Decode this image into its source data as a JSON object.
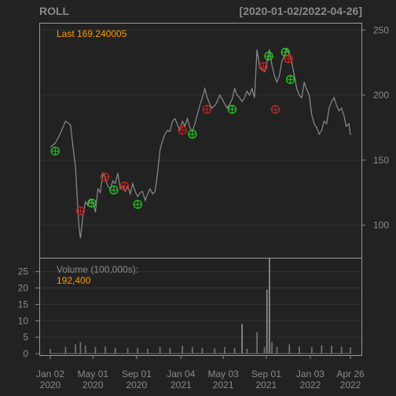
{
  "header": {
    "symbol": "ROLL",
    "range": "[2020-01-02/2022-04-26]"
  },
  "colors": {
    "background": "#222222",
    "panel_border": "#999999",
    "grid": "#333333",
    "axis_text": "#8a8a8a",
    "price_line": "#8c8c8c",
    "volume_bar": "#6f6f6f",
    "volume_bar_up": "#3f7f3f",
    "label_orange": "#ff9900",
    "buy_marker": "#22cc22",
    "sell_marker": "#cc2222"
  },
  "chart_data": [
    {
      "type": "line",
      "panel": "price",
      "legend": {
        "label": "Last",
        "value": "169.240005"
      },
      "ylim": [
        75,
        255
      ],
      "yticks": [
        100,
        150,
        200,
        250
      ],
      "series": [
        {
          "x": [
            "2020-01-02",
            "2020-01-16",
            "2020-01-31",
            "2020-02-14",
            "2020-02-28",
            "2020-03-06",
            "2020-03-13",
            "2020-03-18",
            "2020-03-23",
            "2020-03-27",
            "2020-04-03",
            "2020-04-10",
            "2020-04-17",
            "2020-04-24",
            "2020-05-01",
            "2020-05-08",
            "2020-05-15",
            "2020-05-22",
            "2020-05-29",
            "2020-06-05",
            "2020-06-12",
            "2020-06-19",
            "2020-06-26",
            "2020-07-03",
            "2020-07-10",
            "2020-07-17",
            "2020-07-24",
            "2020-07-31",
            "2020-08-07",
            "2020-08-14",
            "2020-08-21",
            "2020-08-28",
            "2020-09-04",
            "2020-09-11",
            "2020-09-18",
            "2020-09-25",
            "2020-10-02",
            "2020-10-09",
            "2020-10-16",
            "2020-10-23",
            "2020-10-30",
            "2020-11-06",
            "2020-11-13",
            "2020-11-20",
            "2020-11-27",
            "2020-12-04",
            "2020-12-11",
            "2020-12-18",
            "2020-12-24",
            "2020-12-31",
            "2021-01-08",
            "2021-01-15",
            "2021-01-22",
            "2021-01-29",
            "2021-02-05",
            "2021-02-12",
            "2021-02-19",
            "2021-02-26",
            "2021-03-05",
            "2021-03-12",
            "2021-03-19",
            "2021-03-26",
            "2021-04-01",
            "2021-04-09",
            "2021-04-16",
            "2021-04-23",
            "2021-04-30",
            "2021-05-07",
            "2021-05-14",
            "2021-05-21",
            "2021-05-28",
            "2021-06-04",
            "2021-06-11",
            "2021-06-18",
            "2021-06-25",
            "2021-07-02",
            "2021-07-09",
            "2021-07-16",
            "2021-07-23",
            "2021-07-30",
            "2021-08-06",
            "2021-08-13",
            "2021-08-20",
            "2021-08-27",
            "2021-09-03",
            "2021-09-10",
            "2021-09-17",
            "2021-09-24",
            "2021-10-01",
            "2021-10-08",
            "2021-10-15",
            "2021-10-22",
            "2021-10-29",
            "2021-11-05",
            "2021-11-12",
            "2021-11-19",
            "2021-11-26",
            "2021-12-03",
            "2021-12-10",
            "2021-12-17",
            "2021-12-23",
            "2021-12-31",
            "2022-01-07",
            "2022-01-14",
            "2022-01-21",
            "2022-01-28",
            "2022-02-04",
            "2022-02-11",
            "2022-02-18",
            "2022-02-25",
            "2022-03-04",
            "2022-03-11",
            "2022-03-18",
            "2022-03-25",
            "2022-04-01",
            "2022-04-08",
            "2022-04-14",
            "2022-04-22",
            "2022-04-26"
          ],
          "y": [
            160,
            163,
            171,
            180,
            177,
            160,
            145,
            120,
            98,
            90,
            108,
            118,
            115,
            120,
            118,
            110,
            128,
            125,
            140,
            136,
            130,
            128,
            134,
            132,
            140,
            128,
            130,
            126,
            130,
            124,
            132,
            126,
            122,
            125,
            126,
            119,
            124,
            128,
            124,
            126,
            140,
            158,
            165,
            170,
            173,
            172,
            180,
            182,
            178,
            173,
            180,
            176,
            182,
            175,
            172,
            178,
            185,
            192,
            198,
            205,
            198,
            193,
            190,
            192,
            195,
            200,
            197,
            193,
            190,
            193,
            197,
            205,
            200,
            198,
            195,
            198,
            203,
            200,
            205,
            198,
            235,
            222,
            220,
            218,
            225,
            235,
            223,
            215,
            210,
            215,
            226,
            230,
            235,
            232,
            225,
            215,
            205,
            200,
            198,
            210,
            205,
            200,
            185,
            178,
            175,
            170,
            173,
            180,
            178,
            190,
            195,
            198,
            192,
            188,
            190,
            184,
            176,
            178,
            169.24
          ]
        }
      ],
      "markers": {
        "buy": [
          {
            "x": "2020-01-16",
            "y": 157
          },
          {
            "x": "2020-04-28",
            "y": 117
          },
          {
            "x": "2020-06-29",
            "y": 127
          },
          {
            "x": "2020-09-04",
            "y": 116
          },
          {
            "x": "2021-02-05",
            "y": 170
          },
          {
            "x": "2021-05-28",
            "y": 189
          },
          {
            "x": "2021-09-08",
            "y": 230
          },
          {
            "x": "2021-10-25",
            "y": 233
          },
          {
            "x": "2021-11-08",
            "y": 212
          }
        ],
        "sell": [
          {
            "x": "2020-03-27",
            "y": 111
          },
          {
            "x": "2020-06-04",
            "y": 137
          },
          {
            "x": "2020-07-29",
            "y": 130
          },
          {
            "x": "2021-01-08",
            "y": 173
          },
          {
            "x": "2021-03-18",
            "y": 189
          },
          {
            "x": "2021-08-24",
            "y": 222
          },
          {
            "x": "2021-09-27",
            "y": 189
          },
          {
            "x": "2021-11-03",
            "y": 228
          }
        ]
      }
    },
    {
      "type": "bar",
      "panel": "volume",
      "legend": {
        "label": "Volume (100,000s):",
        "value": "192,400"
      },
      "ylim": [
        0,
        29
      ],
      "yticks": [
        0,
        5,
        10,
        15,
        20,
        25
      ],
      "x": [
        "2020-01-02",
        "2020-02-14",
        "2020-03-13",
        "2020-03-27",
        "2020-04-10",
        "2020-05-08",
        "2020-06-05",
        "2020-07-03",
        "2020-08-07",
        "2020-09-04",
        "2020-10-02",
        "2020-11-06",
        "2020-12-04",
        "2021-01-08",
        "2021-02-05",
        "2021-03-05",
        "2021-04-09",
        "2021-05-07",
        "2021-06-04",
        "2021-06-25",
        "2021-07-09",
        "2021-08-06",
        "2021-08-27",
        "2021-09-03",
        "2021-09-10",
        "2021-09-17",
        "2021-10-01",
        "2021-11-05",
        "2021-12-03",
        "2022-01-07",
        "2022-02-04",
        "2022-03-04",
        "2022-04-01",
        "2022-04-26"
      ],
      "values": [
        1.5,
        2.0,
        2.8,
        3.5,
        2.5,
        2.0,
        2.2,
        1.8,
        1.6,
        1.8,
        1.5,
        2.0,
        1.8,
        2.4,
        2.0,
        1.7,
        1.6,
        2.0,
        1.8,
        9.0,
        1.5,
        6.5,
        2.0,
        19.5,
        29.0,
        3.5,
        2.0,
        2.8,
        2.2,
        2.0,
        2.5,
        2.4,
        2.0,
        1.9
      ]
    }
  ],
  "x_axis": {
    "ticks": [
      {
        "date": "2020-01-02",
        "line1": "Jan 02",
        "line2": "2020"
      },
      {
        "date": "2020-05-01",
        "line1": "May 01",
        "line2": "2020"
      },
      {
        "date": "2020-09-01",
        "line1": "Sep 01",
        "line2": "2020"
      },
      {
        "date": "2021-01-04",
        "line1": "Jan 04",
        "line2": "2021"
      },
      {
        "date": "2021-05-03",
        "line1": "May 03",
        "line2": "2021"
      },
      {
        "date": "2021-09-01",
        "line1": "Sep 01",
        "line2": "2021"
      },
      {
        "date": "2022-01-03",
        "line1": "Jan 03",
        "line2": "2022"
      },
      {
        "date": "2022-04-26",
        "line1": "Apr 26",
        "line2": "2022"
      }
    ],
    "start": "2020-01-02",
    "end": "2022-04-26"
  }
}
